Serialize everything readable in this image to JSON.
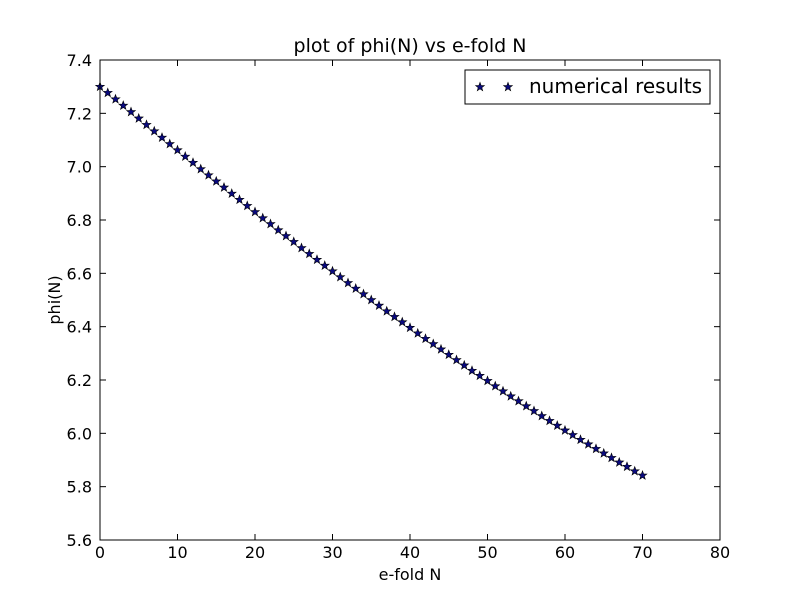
{
  "chart_data": {
    "type": "scatter",
    "title": "plot of phi(N) vs e-fold N",
    "xlabel": "e-fold N",
    "ylabel": "phi(N)",
    "xlim": [
      0,
      80
    ],
    "ylim": [
      5.6,
      7.4
    ],
    "xticks": [
      0,
      10,
      20,
      30,
      40,
      50,
      60,
      70,
      80
    ],
    "yticks": [
      5.6,
      5.8,
      6.0,
      6.2,
      6.4,
      6.6,
      6.8,
      7.0,
      7.2,
      7.4
    ],
    "xtick_labels": [
      "0",
      "10",
      "20",
      "30",
      "40",
      "50",
      "60",
      "70",
      "80"
    ],
    "ytick_labels": [
      "5.6",
      "5.8",
      "6.0",
      "6.2",
      "6.4",
      "6.6",
      "6.8",
      "7.0",
      "7.2",
      "7.4"
    ],
    "grid": false,
    "legend_position": "top-right",
    "series": [
      {
        "name": "numerical results",
        "marker": "star",
        "color": "#0a0a80",
        "x": [
          0,
          1,
          2,
          3,
          4,
          5,
          6,
          7,
          8,
          9,
          10,
          11,
          12,
          13,
          14,
          15,
          16,
          17,
          18,
          19,
          20,
          21,
          22,
          23,
          24,
          25,
          26,
          27,
          28,
          29,
          30,
          31,
          32,
          33,
          34,
          35,
          36,
          37,
          38,
          39,
          40,
          41,
          42,
          43,
          44,
          45,
          46,
          47,
          48,
          49,
          50,
          51,
          52,
          53,
          54,
          55,
          56,
          57,
          58,
          59,
          60,
          61,
          62,
          63,
          64,
          65,
          66,
          67,
          68,
          69,
          70
        ],
        "y": [
          7.3,
          7.277,
          7.253,
          7.229,
          7.205,
          7.181,
          7.157,
          7.133,
          7.109,
          7.085,
          7.062,
          7.038,
          7.015,
          6.991,
          6.968,
          6.945,
          6.922,
          6.899,
          6.876,
          6.853,
          6.83,
          6.807,
          6.785,
          6.762,
          6.74,
          6.718,
          6.695,
          6.673,
          6.651,
          6.629,
          6.608,
          6.586,
          6.564,
          6.543,
          6.522,
          6.5,
          6.479,
          6.458,
          6.437,
          6.417,
          6.396,
          6.375,
          6.355,
          6.335,
          6.315,
          6.295,
          6.275,
          6.255,
          6.235,
          6.216,
          6.197,
          6.177,
          6.158,
          6.139,
          6.121,
          6.102,
          6.084,
          6.065,
          6.047,
          6.029,
          6.011,
          5.994,
          5.976,
          5.959,
          5.942,
          5.925,
          5.908,
          5.891,
          5.875,
          5.858,
          5.842
        ]
      }
    ]
  }
}
